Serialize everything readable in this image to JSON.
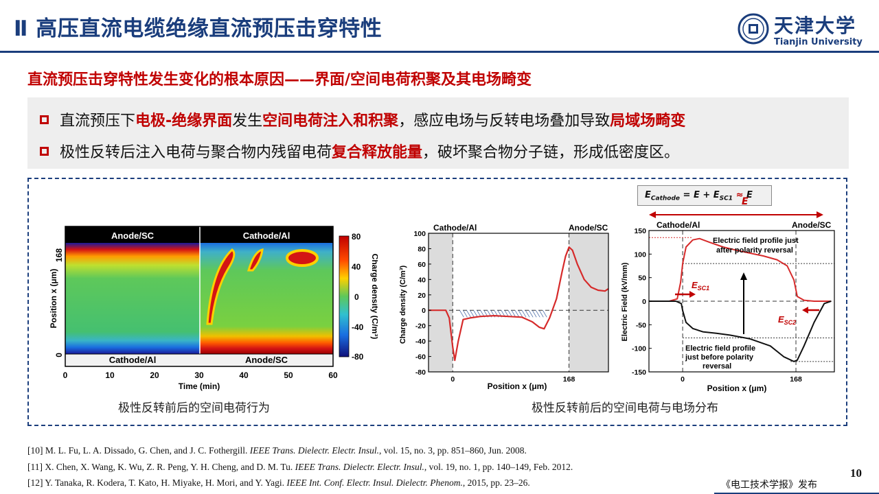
{
  "header": {
    "title": "Ⅱ 高压直流电缆绝缘直流预压击穿特性",
    "logo_cn": "天津大学",
    "logo_en": "Tianjin University",
    "brand_color": "#1a3d7c"
  },
  "subtitle": "直流预压击穿特性发生变化的根本原因——界面/空间电荷积聚及其电场畸变",
  "bullets": [
    {
      "p1": "直流预压下",
      "h1": "电极-绝缘界面",
      "p2": "发生",
      "h2": "空间电荷注入和积聚",
      "p3": "，感应电场与反转电场叠加导致",
      "h3": "局域场畸变",
      "p4": ""
    },
    {
      "p1": "极性反转后注入电荷与聚合物内残留电荷",
      "h1": "复合释放能量",
      "p2": "，破坏聚合物分子链，形成低密度区。",
      "h2": "",
      "p3": "",
      "h3": "",
      "p4": ""
    }
  ],
  "figures": {
    "left": {
      "caption": "极性反转前后的空间电荷行为",
      "top_labels": [
        "Anode/SC",
        "Cathode/Al"
      ],
      "bottom_labels": [
        "Cathode/Al",
        "Anode/SC"
      ],
      "ylabel": "Position x (μm)",
      "yticks": [
        "168",
        "0"
      ],
      "xlabel": "Time (min)",
      "xticks": [
        "0",
        "10",
        "20",
        "30",
        "40",
        "50",
        "60"
      ],
      "colorbar_label": "Charge density (C/m³)",
      "colorbar_ticks": [
        "80",
        "40",
        "0",
        "-40",
        "-80"
      ]
    },
    "middle": {
      "top_labels": [
        "Cathode/Al",
        "Anode/SC"
      ],
      "ylabel": "Charge density (C/m³)",
      "xlabel": "Position x (μm)",
      "chart_data": {
        "type": "line",
        "xlabel": "Position x (μm)",
        "ylabel": "Charge density (C/m³)",
        "ylim": [
          -80,
          100
        ],
        "yticks": [
          100,
          80,
          60,
          40,
          20,
          0,
          -20,
          -40,
          -60,
          -80
        ],
        "xticks": [
          0,
          168
        ],
        "xlim": [
          -35,
          225
        ],
        "x": [
          -35,
          -10,
          -5,
          0,
          3,
          8,
          15,
          25,
          40,
          60,
          80,
          100,
          115,
          125,
          132,
          140,
          150,
          158,
          163,
          168,
          173,
          180,
          190,
          200,
          210,
          220,
          225
        ],
        "y": [
          0,
          0,
          -10,
          -48,
          -65,
          -40,
          -12,
          -10,
          -8,
          -7,
          -8,
          -9,
          -15,
          -22,
          -24,
          -10,
          15,
          50,
          70,
          82,
          78,
          60,
          40,
          30,
          26,
          25,
          28
        ]
      }
    },
    "right": {
      "formula": "E_Cathode = E + E_SC1 ≈ E",
      "formula_parts": {
        "lhs": "E",
        "lhs_sub": "Cathode",
        "mid": " = E + E",
        "mid_sub": "SC1",
        "approx": "≈",
        "rhs": "E",
        "red_e": "E"
      },
      "top_labels": [
        "Cathode/Al",
        "Anode/SC"
      ],
      "ylabel": "Electric Field (kV/mm)",
      "xlabel": "Position x (μm)",
      "annotation_after": [
        "Electric field profile just",
        "after polarity reversal"
      ],
      "annotation_before": [
        "Electric field profile",
        "just before polarity",
        "reversal"
      ],
      "esc1": {
        "main": "E",
        "sub": "SC1"
      },
      "esc2": {
        "main": "E",
        "sub": "SC2"
      },
      "chart_data": {
        "type": "line",
        "xlabel": "Position x (μm)",
        "ylabel": "Electric Field (kV/mm)",
        "ylim": [
          -150,
          150
        ],
        "yticks": [
          150,
          100,
          50,
          0,
          -50,
          -100,
          -150
        ],
        "xticks": [
          0,
          168
        ],
        "xlim": [
          -50,
          225
        ],
        "series": [
          {
            "color": "#d62a2a",
            "x": [
              -50,
              -20,
              -8,
              -3,
              0,
              5,
              15,
              25,
              40,
              60,
              80,
              100,
              120,
              140,
              155,
              165,
              170,
              180,
              195,
              210,
              220
            ],
            "y": [
              0,
              0,
              5,
              40,
              80,
              115,
              130,
              133,
              125,
              115,
              108,
              102,
              96,
              88,
              75,
              45,
              10,
              2,
              0,
              0,
              0
            ]
          },
          {
            "color": "#111111",
            "x": [
              -50,
              -10,
              -2,
              0,
              5,
              15,
              30,
              50,
              70,
              100,
              130,
              150,
              165,
              170,
              180,
              195,
              210,
              220
            ],
            "y": [
              0,
              0,
              -5,
              -20,
              -45,
              -58,
              -65,
              -68,
              -72,
              -80,
              -95,
              -118,
              -128,
              -125,
              -95,
              -45,
              -5,
              0
            ]
          }
        ]
      }
    },
    "right_caption": "极性反转前后的空间电荷与电场分布"
  },
  "references": [
    {
      "pre": "[10] M. L. Fu, L. A. Dissado, G. Chen, and J. C. Fothergill. ",
      "j": "IEEE Trans. Dielectr. Electr. Insul.",
      "post": ", vol. 15, no. 3, pp. 851–860, Jun. 2008."
    },
    {
      "pre": "[11] X. Chen, X. Wang, K. Wu, Z. R. Peng, Y. H. Cheng, and D. M. Tu. ",
      "j": "IEEE Trans. Dielectr. Electr. Insul.",
      "post": ", vol. 19, no. 1, pp. 140–149, Feb. 2012."
    },
    {
      "pre": "[12] Y. Tanaka, R. Kodera, T. Kato, H. Miyake, H. Mori, and Y. Yagi. ",
      "j": "IEEE Int. Conf. Electr. Insul. Dielectr. Phenom.",
      "post": ", 2015, pp. 23–26."
    }
  ],
  "page_number": "10",
  "publisher": "《电工技术学报》发布"
}
